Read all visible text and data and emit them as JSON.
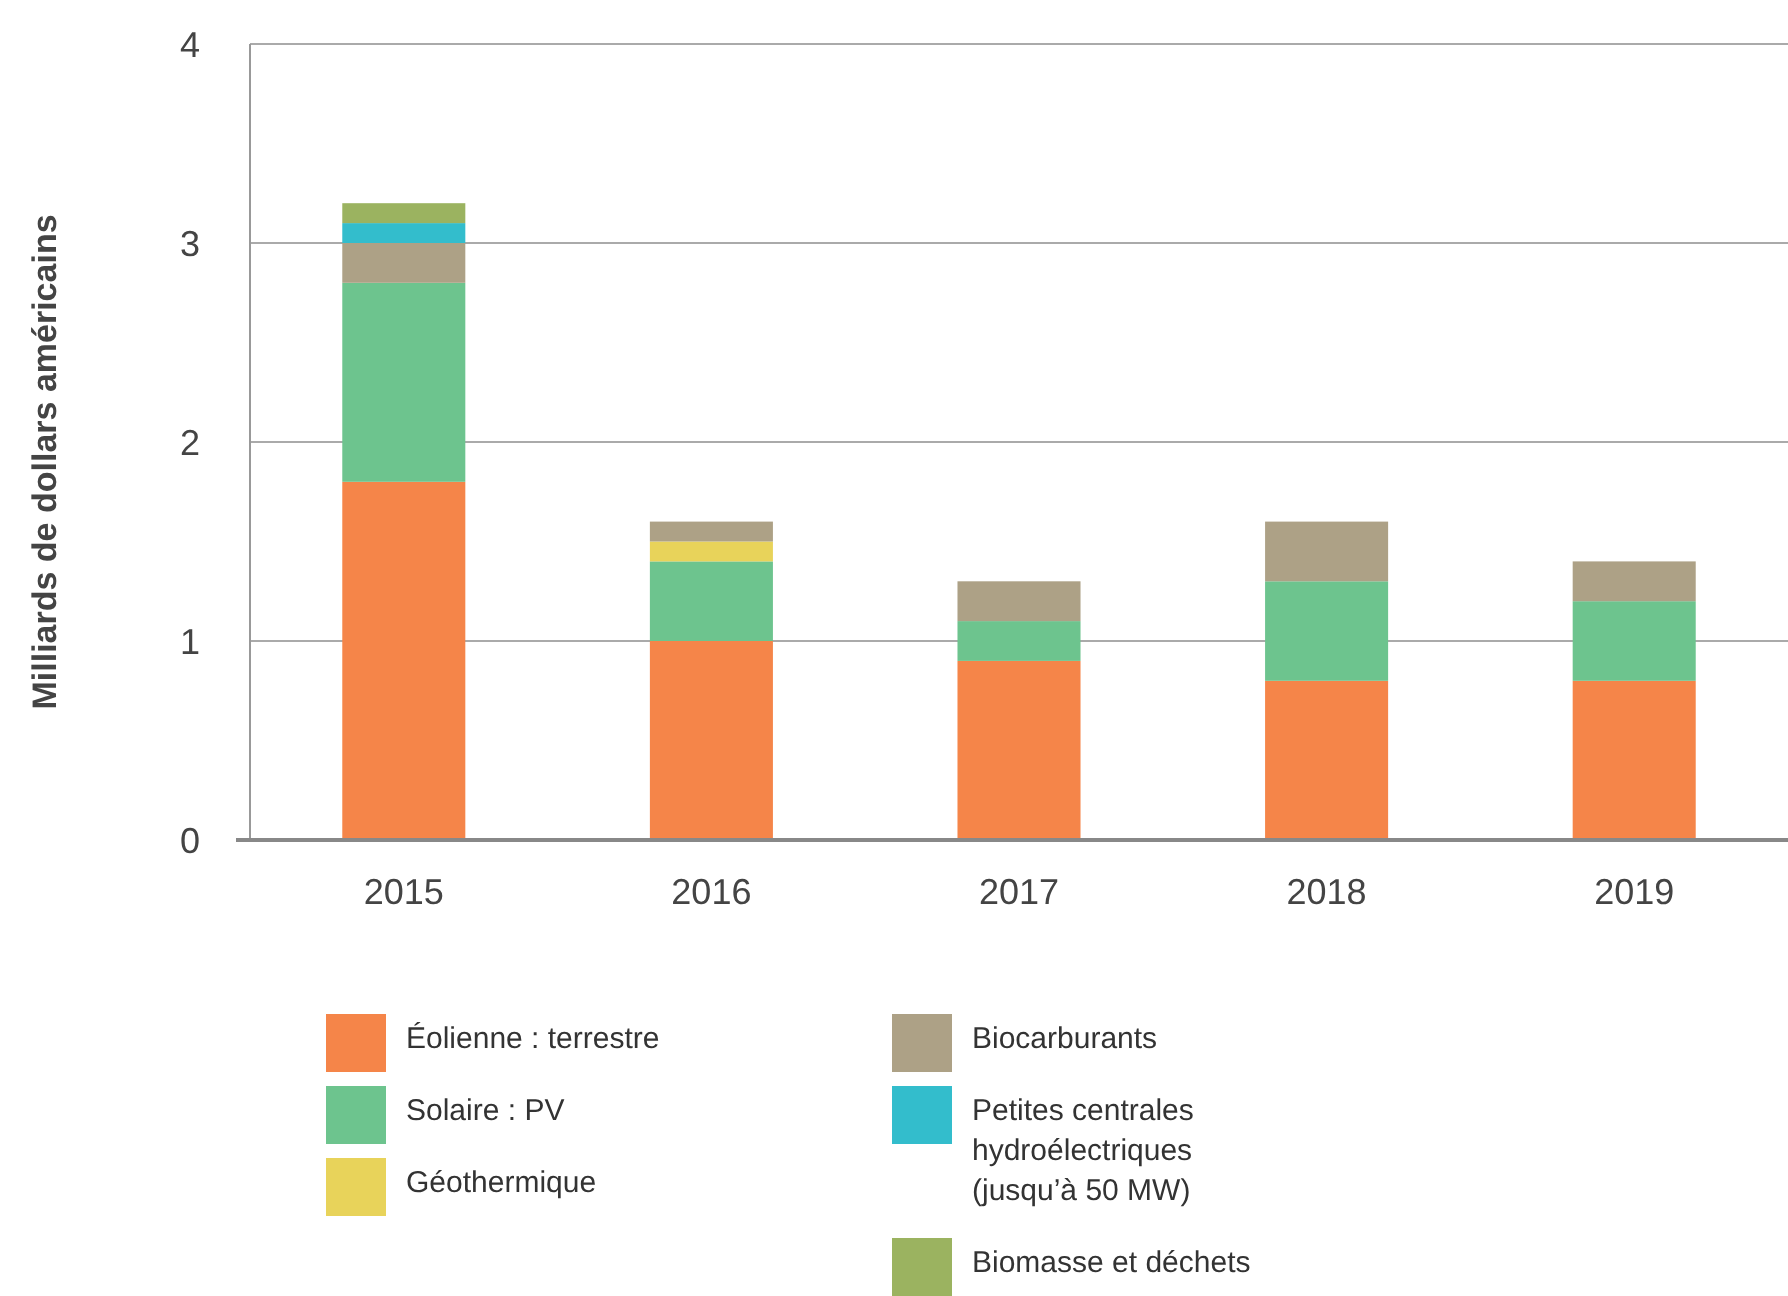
{
  "chart_data": {
    "type": "bar",
    "stacked": true,
    "ylabel": "Milliards de dollars américains",
    "categories": [
      "2015",
      "2016",
      "2017",
      "2018",
      "2019"
    ],
    "ylim": [
      0,
      4
    ],
    "yticks": [
      0,
      1,
      2,
      3,
      4
    ],
    "grid": "y",
    "legend": "bottom",
    "series": [
      {
        "name": "Éolienne : terrestre",
        "color": "#f58549",
        "values": [
          1.8,
          1.0,
          0.9,
          0.8,
          0.8
        ]
      },
      {
        "name": "Solaire : PV",
        "color": "#6dc48e",
        "values": [
          1.0,
          0.4,
          0.2,
          0.5,
          0.4
        ]
      },
      {
        "name": "Géothermique",
        "color": "#e8d35a",
        "values": [
          null,
          0.1,
          null,
          null,
          null
        ]
      },
      {
        "name": "Biocarburants",
        "color": "#ada186",
        "values": [
          0.2,
          0.1,
          0.2,
          0.3,
          0.2
        ]
      },
      {
        "name": "Petites centrales hydroélectriques (jusqu’à 50 MW)",
        "color": "#33bdcc",
        "values": [
          0.1,
          null,
          null,
          null,
          null
        ]
      },
      {
        "name": "Biomasse et déchets",
        "color": "#9bb360",
        "values": [
          0.1,
          null,
          null,
          null,
          null
        ]
      }
    ]
  }
}
